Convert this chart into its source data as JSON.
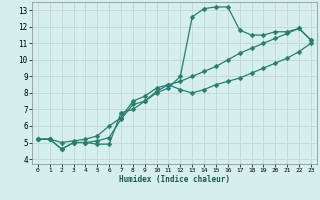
{
  "xlabel": "Humidex (Indice chaleur)",
  "bg_color": "#d5efed",
  "grid_color": "#c8d8d6",
  "line_color": "#2a7d6e",
  "xlim": [
    -0.5,
    23.5
  ],
  "ylim": [
    3.7,
    13.5
  ],
  "xticks": [
    0,
    1,
    2,
    3,
    4,
    5,
    6,
    7,
    8,
    9,
    10,
    11,
    12,
    13,
    14,
    15,
    16,
    17,
    18,
    19,
    20,
    21,
    22,
    23
  ],
  "yticks": [
    4,
    5,
    6,
    7,
    8,
    9,
    10,
    11,
    12,
    13
  ],
  "line1_x": [
    0,
    1,
    2,
    3,
    4,
    5,
    6,
    7,
    8,
    9,
    10,
    11,
    12,
    13,
    14,
    15,
    16,
    17,
    18,
    19,
    20,
    21,
    22,
    23
  ],
  "line1_y": [
    5.2,
    5.2,
    4.6,
    5.0,
    5.0,
    4.9,
    4.9,
    6.8,
    7.0,
    7.5,
    8.0,
    8.3,
    9.0,
    12.6,
    13.1,
    13.2,
    13.2,
    11.8,
    11.5,
    11.5,
    11.7,
    11.7,
    11.9,
    11.2
  ],
  "line2_x": [
    0,
    1,
    2,
    3,
    4,
    5,
    6,
    7,
    8,
    9,
    10,
    11,
    12,
    13,
    14,
    15,
    16,
    17,
    18,
    19,
    20,
    21,
    22,
    23
  ],
  "line2_y": [
    5.2,
    5.2,
    4.6,
    5.0,
    5.0,
    5.1,
    5.3,
    6.4,
    7.3,
    7.5,
    8.1,
    8.5,
    8.2,
    8.0,
    8.2,
    8.5,
    8.7,
    8.9,
    9.2,
    9.5,
    9.8,
    10.1,
    10.5,
    11.0
  ],
  "line3_x": [
    0,
    1,
    2,
    3,
    4,
    5,
    6,
    7,
    8,
    9,
    10,
    11,
    12,
    13,
    14,
    15,
    16,
    17,
    18,
    19,
    20,
    21,
    22,
    23
  ],
  "line3_y": [
    5.2,
    5.2,
    5.0,
    5.1,
    5.2,
    5.4,
    6.0,
    6.5,
    7.5,
    7.8,
    8.3,
    8.5,
    8.7,
    9.0,
    9.3,
    9.6,
    10.0,
    10.4,
    10.7,
    11.0,
    11.3,
    11.6,
    11.9,
    11.2
  ]
}
